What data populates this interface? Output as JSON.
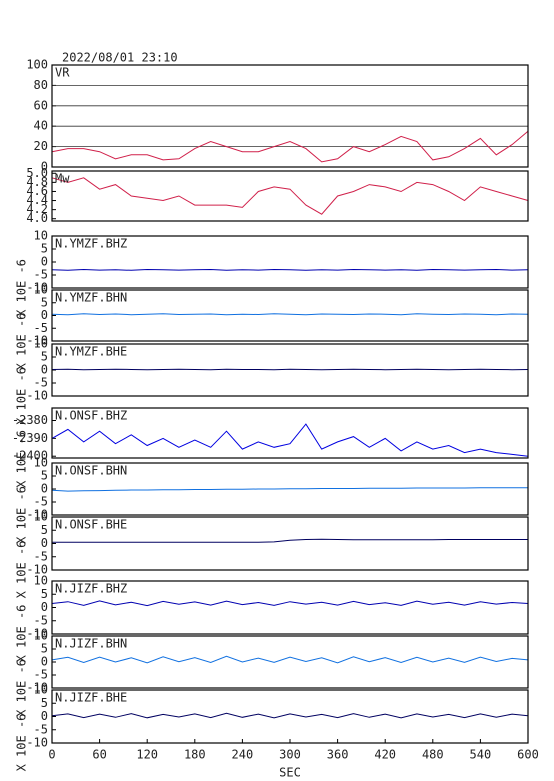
{
  "chart_data": {
    "type": "line",
    "title": "2022/08/01 23:10",
    "xlabel": "SEC",
    "x": [
      0,
      20,
      40,
      60,
      80,
      100,
      120,
      140,
      160,
      180,
      200,
      220,
      240,
      260,
      280,
      300,
      320,
      340,
      360,
      380,
      400,
      420,
      440,
      460,
      480,
      500,
      520,
      540,
      560,
      580,
      600
    ],
    "xlim": [
      0,
      600
    ],
    "xticks": [
      0,
      60,
      120,
      180,
      240,
      300,
      360,
      420,
      480,
      540,
      600
    ],
    "panels": [
      {
        "label": "VR",
        "color": "#d0204a",
        "grid": true,
        "ylim": [
          0,
          100
        ],
        "yticks": [
          0,
          20,
          40,
          60,
          80,
          100
        ],
        "values": [
          15,
          18,
          18,
          15,
          8,
          12,
          12,
          7,
          8,
          18,
          25,
          20,
          15,
          15,
          20,
          25,
          18,
          5,
          8,
          20,
          15,
          22,
          30,
          25,
          7,
          10,
          18,
          28,
          12,
          22,
          35
        ]
      },
      {
        "label": "Mw",
        "color": "#d0204a",
        "grid": false,
        "ylim": [
          3.95,
          5.05
        ],
        "yticks": [
          {
            "value": 4,
            "label": "4.0"
          },
          4.2,
          4.4,
          4.6,
          4.8,
          {
            "value": 5,
            "label": "5.0"
          }
        ],
        "values": [
          4.9,
          4.8,
          4.9,
          4.65,
          4.75,
          4.5,
          4.45,
          4.4,
          4.5,
          4.3,
          4.3,
          4.3,
          4.25,
          4.6,
          4.7,
          4.65,
          4.3,
          4.1,
          4.5,
          4.6,
          4.75,
          4.7,
          4.6,
          4.8,
          4.75,
          4.6,
          4.4,
          4.7,
          4.6,
          4.5,
          4.4
        ]
      },
      {
        "label": "N.YMZF.BHZ",
        "ylabel": "X 10E -6",
        "color": "#0000b0",
        "grid": false,
        "ylim": [
          -10,
          10
        ],
        "yticks": [
          -10,
          -5,
          0,
          5,
          10
        ],
        "values": [
          -3,
          -3.2,
          -2.9,
          -3.1,
          -3,
          -3.2,
          -2.9,
          -3,
          -3.1,
          -3,
          -2.9,
          -3.2,
          -3,
          -3.1,
          -2.9,
          -3,
          -3.2,
          -3,
          -3.1,
          -2.9,
          -3,
          -3.1,
          -3,
          -3.2,
          -2.9,
          -3,
          -3.1,
          -3,
          -2.9,
          -3.1,
          -3
        ]
      },
      {
        "label": "N.YMZF.BHN",
        "ylabel": "X 10E -6",
        "color": "#1070e0",
        "grid": false,
        "ylim": [
          -10,
          10
        ],
        "yticks": [
          -10,
          -5,
          0,
          5,
          10
        ],
        "values": [
          0.5,
          0.3,
          0.7,
          0.4,
          0.6,
          0.3,
          0.5,
          0.7,
          0.4,
          0.5,
          0.6,
          0.3,
          0.5,
          0.4,
          0.7,
          0.5,
          0.3,
          0.6,
          0.5,
          0.4,
          0.6,
          0.5,
          0.3,
          0.7,
          0.5,
          0.4,
          0.6,
          0.5,
          0.3,
          0.6,
          0.5
        ]
      },
      {
        "label": "N.YMZF.BHE",
        "ylabel": "X 10E -6",
        "color": "#000060",
        "grid": false,
        "ylim": [
          -10,
          10
        ],
        "yticks": [
          -10,
          -5,
          0,
          5,
          10
        ],
        "values": [
          0.2,
          0.3,
          0.1,
          0.2,
          0.3,
          0.2,
          0.1,
          0.2,
          0.3,
          0.2,
          0.1,
          0.3,
          0.2,
          0.2,
          0.1,
          0.3,
          0.2,
          0.1,
          0.2,
          0.3,
          0.2,
          0.1,
          0.2,
          0.3,
          0.2,
          0.1,
          0.2,
          0.3,
          0.2,
          0.1,
          0.2
        ]
      },
      {
        "label": "N.ONSF.BHZ",
        "ylabel": "X 10E -6",
        "color": "#0000e0",
        "grid": false,
        "ylim": [
          -2401,
          -2373
        ],
        "yticks": [
          -2400,
          -2390,
          -2380
        ],
        "values": [
          -2390,
          -2385,
          -2392,
          -2386,
          -2393,
          -2388,
          -2394,
          -2390,
          -2395,
          -2391,
          -2395,
          -2386,
          -2396,
          -2392,
          -2395,
          -2393,
          -2382,
          -2396,
          -2392,
          -2389,
          -2395,
          -2390,
          -2397,
          -2392,
          -2396,
          -2394,
          -2398,
          -2396,
          -2398,
          -2399,
          -2400
        ]
      },
      {
        "label": "N.ONSF.BHN",
        "ylabel": "X 10E -6",
        "color": "#1070e0",
        "grid": false,
        "ylim": [
          -10,
          10
        ],
        "yticks": [
          -10,
          -5,
          0,
          5,
          10
        ],
        "values": [
          -0.5,
          -0.8,
          -0.7,
          -0.6,
          -0.5,
          -0.4,
          -0.4,
          -0.3,
          -0.3,
          -0.2,
          -0.2,
          -0.1,
          -0.1,
          0,
          0,
          0.1,
          0.1,
          0.2,
          0.2,
          0.2,
          0.3,
          0.3,
          0.3,
          0.4,
          0.4,
          0.4,
          0.4,
          0.5,
          0.5,
          0.5,
          0.5
        ]
      },
      {
        "label": "N.ONSF.BHE",
        "ylabel": "X 10E -6",
        "color": "#000060",
        "grid": false,
        "ylim": [
          -10,
          10
        ],
        "yticks": [
          -10,
          -5,
          0,
          5,
          10
        ],
        "values": [
          0.5,
          0.5,
          0.5,
          0.5,
          0.5,
          0.5,
          0.5,
          0.5,
          0.5,
          0.5,
          0.5,
          0.5,
          0.5,
          0.5,
          0.6,
          1.2,
          1.5,
          1.6,
          1.5,
          1.4,
          1.4,
          1.4,
          1.4,
          1.4,
          1.4,
          1.5,
          1.5,
          1.5,
          1.5,
          1.5,
          1.5
        ]
      },
      {
        "label": "N.JIZF.BHZ",
        "ylabel": "X 10E -6",
        "color": "#0000b0",
        "grid": false,
        "ylim": [
          -10,
          10
        ],
        "yticks": [
          -10,
          -5,
          0,
          5,
          10
        ],
        "values": [
          1.5,
          2.2,
          0.8,
          2.5,
          1,
          2,
          0.7,
          2.3,
          1.2,
          2.1,
          0.9,
          2.4,
          1.1,
          1.9,
          0.8,
          2.2,
          1.3,
          2,
          0.9,
          2.3,
          1.1,
          1.8,
          0.8,
          2.4,
          1.2,
          2,
          0.9,
          2.2,
          1.3,
          1.9,
          1.5
        ]
      },
      {
        "label": "N.JIZF.BHN",
        "ylabel": "X 10E -6",
        "color": "#1070e0",
        "grid": false,
        "ylim": [
          -10,
          10
        ],
        "yticks": [
          -10,
          -5,
          0,
          5,
          10
        ],
        "values": [
          0.8,
          1.8,
          -0.2,
          1.9,
          0,
          1.6,
          -0.3,
          2,
          0.1,
          1.7,
          -0.2,
          2.2,
          0,
          1.5,
          -0.1,
          1.9,
          0.2,
          1.6,
          -0.3,
          2,
          0.1,
          1.7,
          -0.2,
          1.8,
          0,
          1.5,
          -0.1,
          1.9,
          0.2,
          1.4,
          0.8
        ]
      },
      {
        "label": "N.JIZF.BHE",
        "ylabel": "X 10E -6",
        "color": "#000060",
        "grid": false,
        "ylim": [
          -10,
          10
        ],
        "yticks": [
          -10,
          -5,
          0,
          5,
          10
        ],
        "values": [
          0.3,
          1,
          -0.4,
          0.9,
          -0.3,
          1.1,
          -0.5,
          0.8,
          -0.2,
          1,
          -0.4,
          1.2,
          -0.3,
          0.9,
          -0.5,
          1,
          -0.2,
          0.8,
          -0.4,
          1.1,
          -0.3,
          0.9,
          -0.5,
          1,
          -0.2,
          0.8,
          -0.4,
          1,
          -0.3,
          0.9,
          0.3
        ]
      }
    ]
  }
}
